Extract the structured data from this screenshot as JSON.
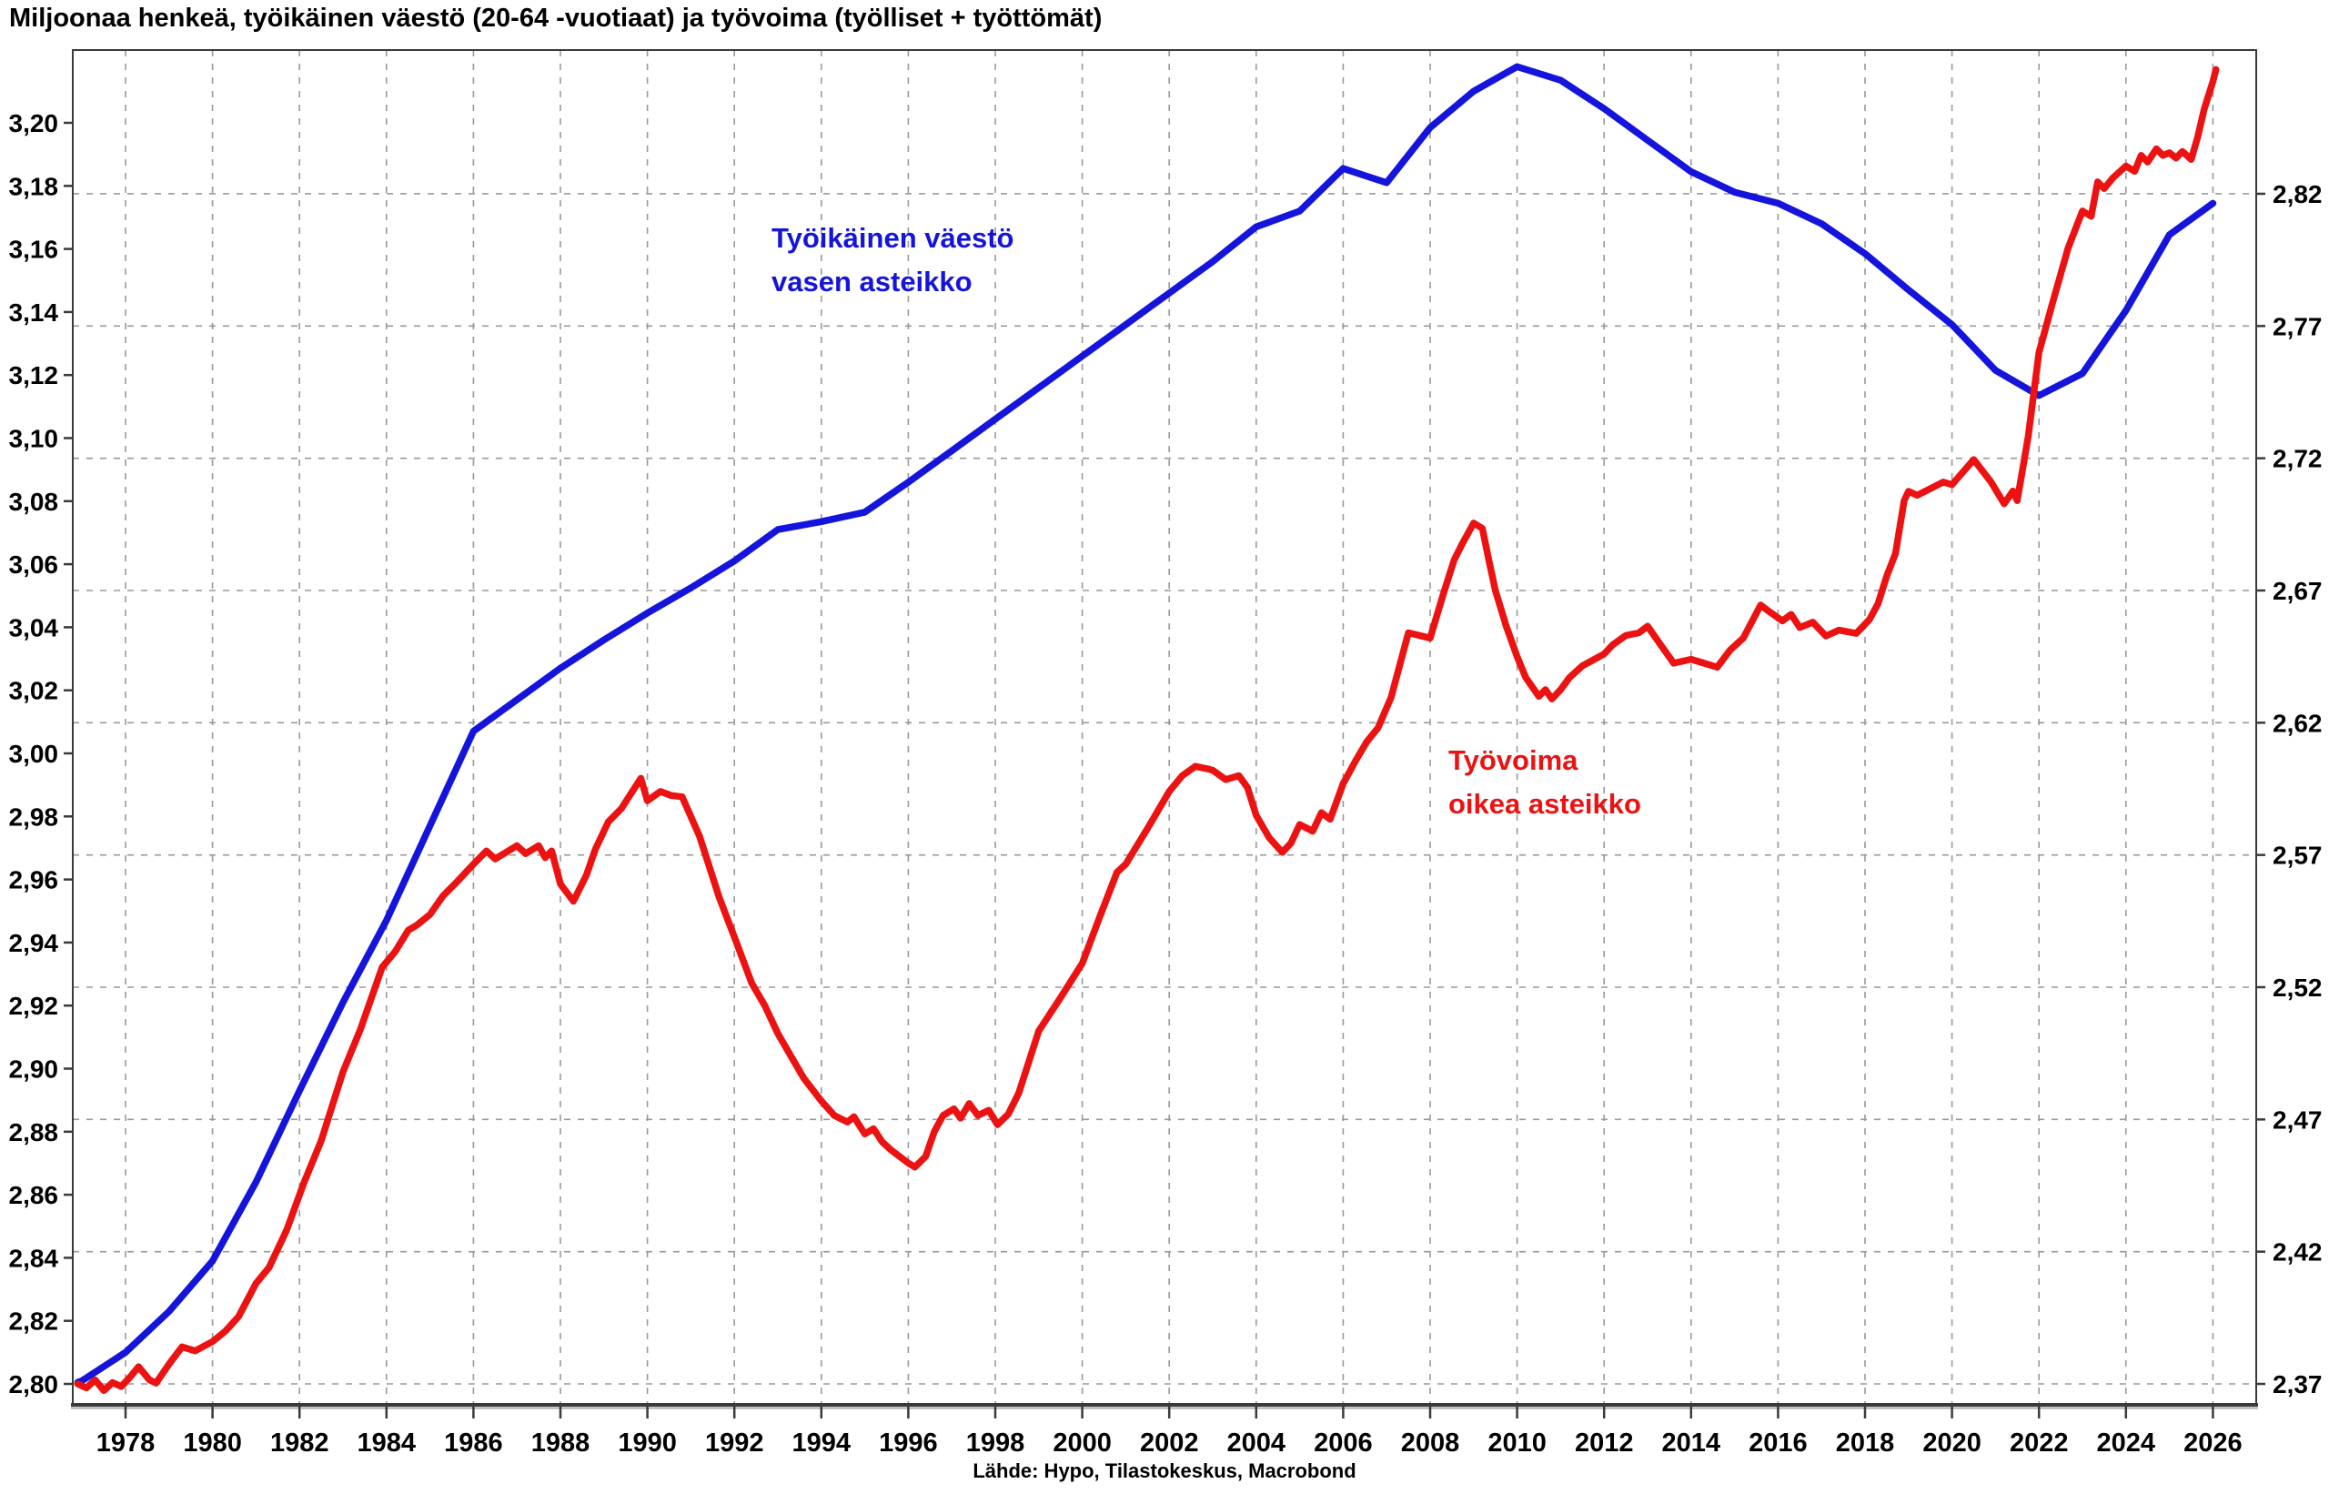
{
  "chart_data": {
    "type": "line",
    "title": "Miljoonaa henkeä, työikäinen väestö (20-64 -vuotiaat) ja työvoima (työlliset + työttömät)",
    "source": "Lähde: Hypo, Tilastokeskus, Macrobond",
    "grid": "dashed, vertical every 2 years, horizontal at right-axis ticks",
    "x_axis": {
      "min": 1976.9,
      "max": 2026.95,
      "tick_years": [
        1978,
        1980,
        1982,
        1984,
        1986,
        1988,
        1990,
        1992,
        1994,
        1996,
        1998,
        2000,
        2002,
        2004,
        2006,
        2008,
        2010,
        2012,
        2014,
        2016,
        2018,
        2020,
        2022,
        2024,
        2026
      ]
    },
    "left_axis": {
      "min": 2.7937,
      "max": 3.2231,
      "tick_values": [
        2.8,
        2.82,
        2.84,
        2.86,
        2.88,
        2.9,
        2.92,
        2.94,
        2.96,
        2.98,
        3.0,
        3.02,
        3.04,
        3.06,
        3.08,
        3.1,
        3.12,
        3.14,
        3.16,
        3.18,
        3.2
      ],
      "decimal": "comma"
    },
    "right_axis": {
      "min": 2.3624,
      "max": 2.8743,
      "tick_values": [
        2.37,
        2.42,
        2.47,
        2.52,
        2.57,
        2.62,
        2.67,
        2.72,
        2.77,
        2.82
      ],
      "decimal": "comma"
    },
    "annotations": {
      "blue_line1": "Työikäinen väestö",
      "blue_line2": "vasen asteikko",
      "red_line1": "Työvoima",
      "red_line2": "oikea asteikko"
    },
    "series": [
      {
        "name": "Työikäinen väestö",
        "axis": "left",
        "color": "#1414dc",
        "points": [
          [
            1976.9,
            2.8005
          ],
          [
            1977,
            2.801
          ],
          [
            1978,
            2.81
          ],
          [
            1979,
            2.823
          ],
          [
            1980,
            2.839
          ],
          [
            1981,
            2.864
          ],
          [
            1982,
            2.893
          ],
          [
            1983,
            2.921
          ],
          [
            1984,
            2.947
          ],
          [
            1985,
            2.977
          ],
          [
            1986,
            3.007
          ],
          [
            1987,
            3.017
          ],
          [
            1988,
            3.027
          ],
          [
            1989,
            3.036
          ],
          [
            1990,
            3.0445
          ],
          [
            1991,
            3.0525
          ],
          [
            1992,
            3.061
          ],
          [
            1993,
            3.071
          ],
          [
            1994,
            3.0735
          ],
          [
            1995,
            3.0765
          ],
          [
            1996,
            3.086
          ],
          [
            1997,
            3.096
          ],
          [
            1998,
            3.106
          ],
          [
            1999,
            3.116
          ],
          [
            2000,
            3.126
          ],
          [
            2001,
            3.136
          ],
          [
            2002,
            3.146
          ],
          [
            2003,
            3.156
          ],
          [
            2004,
            3.167
          ],
          [
            2005,
            3.172
          ],
          [
            2006,
            3.1855
          ],
          [
            2007,
            3.181
          ],
          [
            2008,
            3.1985
          ],
          [
            2009,
            3.21
          ],
          [
            2010,
            3.2178
          ],
          [
            2011,
            3.2135
          ],
          [
            2012,
            3.2045
          ],
          [
            2013,
            3.1945
          ],
          [
            2014,
            3.1845
          ],
          [
            2015,
            3.178
          ],
          [
            2016,
            3.1745
          ],
          [
            2017,
            3.168
          ],
          [
            2018,
            3.1585
          ],
          [
            2019,
            3.147
          ],
          [
            2020,
            3.136
          ],
          [
            2021,
            3.1215
          ],
          [
            2022,
            3.1135
          ],
          [
            2023,
            3.1205
          ],
          [
            2024,
            3.1405
          ],
          [
            2025,
            3.1645
          ],
          [
            2026,
            3.1745
          ]
        ]
      },
      {
        "name": "Työvoima",
        "axis": "right",
        "color": "#ec1212",
        "points": [
          [
            1976.9,
            2.37
          ],
          [
            1977.1,
            2.3685
          ],
          [
            1977.3,
            2.3715
          ],
          [
            1977.5,
            2.3675
          ],
          [
            1977.7,
            2.3705
          ],
          [
            1977.9,
            2.369
          ],
          [
            1978.1,
            2.3725
          ],
          [
            1978.3,
            2.3765
          ],
          [
            1978.55,
            2.3715
          ],
          [
            1978.7,
            2.3703
          ],
          [
            1979.0,
            2.3775
          ],
          [
            1979.3,
            2.384
          ],
          [
            1979.6,
            2.3825
          ],
          [
            1980.0,
            2.386
          ],
          [
            1980.3,
            2.39
          ],
          [
            1980.6,
            2.3955
          ],
          [
            1981.0,
            2.408
          ],
          [
            1981.3,
            2.414
          ],
          [
            1981.7,
            2.428
          ],
          [
            1982.1,
            2.446
          ],
          [
            1982.5,
            2.462
          ],
          [
            1983.0,
            2.488
          ],
          [
            1983.4,
            2.504
          ],
          [
            1983.9,
            2.5275
          ],
          [
            1984.2,
            2.5335
          ],
          [
            1984.5,
            2.5415
          ],
          [
            1984.7,
            2.5435
          ],
          [
            1985.0,
            2.5475
          ],
          [
            1985.3,
            2.5545
          ],
          [
            1985.6,
            2.5595
          ],
          [
            1986.0,
            2.5665
          ],
          [
            1986.3,
            2.5715
          ],
          [
            1986.5,
            2.5685
          ],
          [
            1986.8,
            2.5715
          ],
          [
            1987.0,
            2.5735
          ],
          [
            1987.2,
            2.5705
          ],
          [
            1987.5,
            2.5735
          ],
          [
            1987.65,
            2.569
          ],
          [
            1987.8,
            2.5715
          ],
          [
            1988.0,
            2.559
          ],
          [
            1988.3,
            2.5525
          ],
          [
            1988.6,
            2.5625
          ],
          [
            1988.8,
            2.572
          ],
          [
            1989.1,
            2.5825
          ],
          [
            1989.4,
            2.5875
          ],
          [
            1989.85,
            2.599
          ],
          [
            1990.0,
            2.5905
          ],
          [
            1990.3,
            2.594
          ],
          [
            1990.55,
            2.5925
          ],
          [
            1990.8,
            2.592
          ],
          [
            1991.2,
            2.577
          ],
          [
            1991.65,
            2.554
          ],
          [
            1992.0,
            2.539
          ],
          [
            1992.4,
            2.5215
          ],
          [
            1992.7,
            2.513
          ],
          [
            1993.0,
            2.5025
          ],
          [
            1993.3,
            2.494
          ],
          [
            1993.6,
            2.4855
          ],
          [
            1994.0,
            2.477
          ],
          [
            1994.3,
            2.4715
          ],
          [
            1994.6,
            2.469
          ],
          [
            1994.75,
            2.471
          ],
          [
            1995.0,
            2.4645
          ],
          [
            1995.2,
            2.4665
          ],
          [
            1995.4,
            2.4615
          ],
          [
            1995.6,
            2.4585
          ],
          [
            1996.0,
            2.4535
          ],
          [
            1996.15,
            2.452
          ],
          [
            1996.4,
            2.456
          ],
          [
            1996.6,
            2.4655
          ],
          [
            1996.8,
            2.4715
          ],
          [
            1997.05,
            2.474
          ],
          [
            1997.2,
            2.4705
          ],
          [
            1997.4,
            2.476
          ],
          [
            1997.6,
            2.4715
          ],
          [
            1997.85,
            2.4735
          ],
          [
            1998.05,
            2.468
          ],
          [
            1998.3,
            2.472
          ],
          [
            1998.54,
            2.48
          ],
          [
            1999.0,
            2.5035
          ],
          [
            1999.5,
            2.516
          ],
          [
            2000.0,
            2.529
          ],
          [
            2000.4,
            2.5465
          ],
          [
            2000.8,
            2.5635
          ],
          [
            2001.0,
            2.5665
          ],
          [
            2001.5,
            2.58
          ],
          [
            2002.0,
            2.594
          ],
          [
            2002.3,
            2.6
          ],
          [
            2002.6,
            2.6035
          ],
          [
            2002.9,
            2.6025
          ],
          [
            2003.0,
            2.602
          ],
          [
            2003.3,
            2.5985
          ],
          [
            2003.6,
            2.6
          ],
          [
            2003.8,
            2.5955
          ],
          [
            2004.0,
            2.585
          ],
          [
            2004.3,
            2.5765
          ],
          [
            2004.6,
            2.571
          ],
          [
            2004.8,
            2.5745
          ],
          [
            2005.0,
            2.5815
          ],
          [
            2005.3,
            2.579
          ],
          [
            2005.5,
            2.586
          ],
          [
            2005.7,
            2.5835
          ],
          [
            2006.0,
            2.597
          ],
          [
            2006.3,
            2.606
          ],
          [
            2006.55,
            2.613
          ],
          [
            2006.8,
            2.618
          ],
          [
            2007.1,
            2.6295
          ],
          [
            2007.5,
            2.654
          ],
          [
            2008.0,
            2.652
          ],
          [
            2008.3,
            2.6685
          ],
          [
            2008.55,
            2.6815
          ],
          [
            2008.75,
            2.688
          ],
          [
            2009.0,
            2.6955
          ],
          [
            2009.2,
            2.6935
          ],
          [
            2009.35,
            2.6815
          ],
          [
            2009.5,
            2.67
          ],
          [
            2009.75,
            2.6565
          ],
          [
            2010.0,
            2.645
          ],
          [
            2010.2,
            2.637
          ],
          [
            2010.5,
            2.63
          ],
          [
            2010.65,
            2.6325
          ],
          [
            2010.8,
            2.629
          ],
          [
            2011.0,
            2.6325
          ],
          [
            2011.2,
            2.637
          ],
          [
            2011.5,
            2.6415
          ],
          [
            2012.0,
            2.646
          ],
          [
            2012.2,
            2.6495
          ],
          [
            2012.5,
            2.653
          ],
          [
            2012.8,
            2.654
          ],
          [
            2013.0,
            2.6565
          ],
          [
            2013.3,
            2.6495
          ],
          [
            2013.6,
            2.6425
          ],
          [
            2014.0,
            2.644
          ],
          [
            2014.3,
            2.6425
          ],
          [
            2014.6,
            2.641
          ],
          [
            2014.9,
            2.6475
          ],
          [
            2015.2,
            2.652
          ],
          [
            2015.6,
            2.6645
          ],
          [
            2015.8,
            2.662
          ],
          [
            2016.1,
            2.6585
          ],
          [
            2016.3,
            2.661
          ],
          [
            2016.5,
            2.656
          ],
          [
            2016.8,
            2.658
          ],
          [
            2017.1,
            2.6528
          ],
          [
            2017.4,
            2.655
          ],
          [
            2017.8,
            2.6538
          ],
          [
            2018.1,
            2.659
          ],
          [
            2018.3,
            2.665
          ],
          [
            2018.5,
            2.6755
          ],
          [
            2018.7,
            2.684
          ],
          [
            2018.9,
            2.704
          ],
          [
            2019.0,
            2.7075
          ],
          [
            2019.2,
            2.706
          ],
          [
            2019.5,
            2.7085
          ],
          [
            2019.8,
            2.711
          ],
          [
            2020.0,
            2.71
          ],
          [
            2020.5,
            2.7195
          ],
          [
            2020.9,
            2.711
          ],
          [
            2021.2,
            2.7028
          ],
          [
            2021.4,
            2.7076
          ],
          [
            2021.5,
            2.704
          ],
          [
            2021.75,
            2.728
          ],
          [
            2022.0,
            2.76
          ],
          [
            2022.3,
            2.778
          ],
          [
            2022.67,
            2.7995
          ],
          [
            2022.8,
            2.805
          ],
          [
            2023.0,
            2.8135
          ],
          [
            2023.2,
            2.8115
          ],
          [
            2023.35,
            2.8245
          ],
          [
            2023.5,
            2.822
          ],
          [
            2023.7,
            2.826
          ],
          [
            2024.0,
            2.8305
          ],
          [
            2024.2,
            2.8285
          ],
          [
            2024.35,
            2.8345
          ],
          [
            2024.5,
            2.832
          ],
          [
            2024.7,
            2.837
          ],
          [
            2024.85,
            2.8345
          ],
          [
            2025.0,
            2.8355
          ],
          [
            2025.15,
            2.8335
          ],
          [
            2025.3,
            2.836
          ],
          [
            2025.5,
            2.833
          ],
          [
            2025.65,
            2.8415
          ],
          [
            2025.8,
            2.852
          ],
          [
            2026.0,
            2.8625
          ],
          [
            2026.07,
            2.867
          ]
        ]
      }
    ],
    "style": {
      "grid_color": "#999999",
      "axis_color": "#3a3a3a",
      "axis_shadow_color": "#ababab",
      "line_width": 7.5
    }
  }
}
